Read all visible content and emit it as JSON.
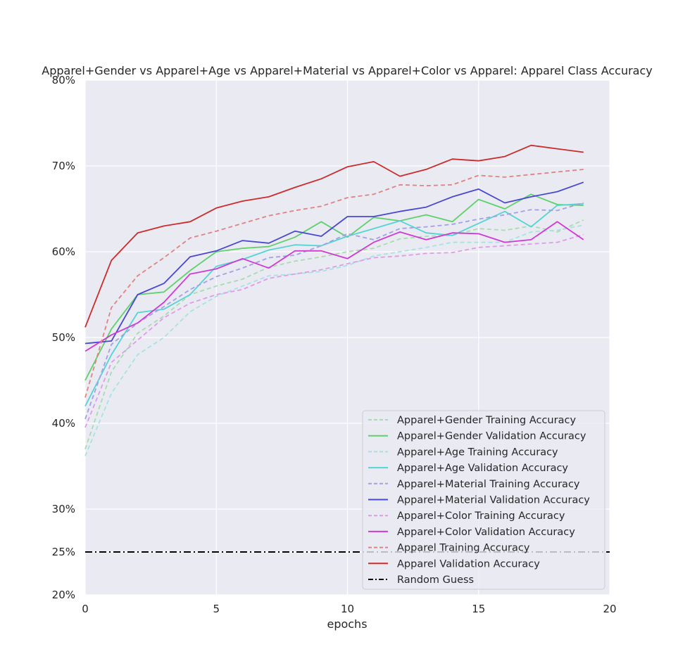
{
  "chart_data": {
    "type": "line",
    "title": "Apparel+Gender vs Apparel+Age vs Apparel+Material vs Apparel+Color vs Apparel: Apparel Class Accuracy",
    "xlabel": "epochs",
    "ylabel": "",
    "xlim": [
      0,
      20
    ],
    "ylim": [
      0.2,
      0.8
    ],
    "xticks": [
      0,
      5,
      10,
      15,
      20
    ],
    "xtick_labels": [
      "0",
      "5",
      "10",
      "15",
      "20"
    ],
    "yticks": [
      0.2,
      0.25,
      0.3,
      0.4,
      0.5,
      0.6,
      0.7,
      0.8
    ],
    "ytick_labels": [
      "20%",
      "25%",
      "30%",
      "40%",
      "50%",
      "60%",
      "70%",
      "80%"
    ],
    "grid": true,
    "legend_position": "lower-right",
    "x": [
      0,
      1,
      2,
      3,
      4,
      5,
      6,
      7,
      8,
      9,
      10,
      11,
      12,
      13,
      14,
      15,
      16,
      17,
      18,
      19
    ],
    "series": [
      {
        "name": "Apparel+Gender Training Accuracy",
        "color": "#a6ddae",
        "dash": "dashed",
        "values": [
          0.37,
          0.46,
          0.505,
          0.525,
          0.55,
          0.56,
          0.568,
          0.582,
          0.589,
          0.594,
          0.6,
          0.604,
          0.615,
          0.618,
          0.619,
          0.627,
          0.625,
          0.63,
          0.623,
          0.637
        ]
      },
      {
        "name": "Apparel+Gender Validation Accuracy",
        "color": "#5ed16b",
        "dash": "solid",
        "values": [
          0.45,
          0.51,
          0.55,
          0.553,
          0.578,
          0.6,
          0.604,
          0.606,
          0.617,
          0.635,
          0.617,
          0.64,
          0.636,
          0.643,
          0.635,
          0.661,
          0.65,
          0.667,
          0.655,
          0.654
        ]
      },
      {
        "name": "Apparel+Age Training Accuracy",
        "color": "#a5e3e3",
        "dash": "dashed",
        "values": [
          0.362,
          0.435,
          0.48,
          0.5,
          0.53,
          0.548,
          0.56,
          0.572,
          0.574,
          0.577,
          0.584,
          0.595,
          0.6,
          0.605,
          0.611,
          0.611,
          0.611,
          0.623,
          0.625,
          0.631
        ]
      },
      {
        "name": "Apparel+Age Validation Accuracy",
        "color": "#54d4d4",
        "dash": "solid",
        "values": [
          0.42,
          0.48,
          0.529,
          0.533,
          0.55,
          0.583,
          0.591,
          0.602,
          0.608,
          0.607,
          0.618,
          0.627,
          0.636,
          0.622,
          0.619,
          0.633,
          0.647,
          0.629,
          0.654,
          0.656
        ]
      },
      {
        "name": "Apparel+Material Training Accuracy",
        "color": "#a3a0e6",
        "dash": "dashed",
        "values": [
          0.405,
          0.492,
          0.517,
          0.536,
          0.556,
          0.571,
          0.581,
          0.593,
          0.596,
          0.607,
          0.621,
          0.614,
          0.627,
          0.629,
          0.632,
          0.638,
          0.643,
          0.649,
          0.648,
          0.657
        ]
      },
      {
        "name": "Apparel+Material Validation Accuracy",
        "color": "#4848d1",
        "dash": "solid",
        "values": [
          0.493,
          0.496,
          0.55,
          0.563,
          0.594,
          0.601,
          0.613,
          0.61,
          0.624,
          0.618,
          0.641,
          0.641,
          0.647,
          0.652,
          0.664,
          0.673,
          0.657,
          0.664,
          0.67,
          0.681
        ]
      },
      {
        "name": "Apparel+Color Training Accuracy",
        "color": "#e09be8",
        "dash": "dashed",
        "values": [
          0.395,
          0.471,
          0.497,
          0.523,
          0.54,
          0.55,
          0.556,
          0.569,
          0.574,
          0.579,
          0.586,
          0.593,
          0.595,
          0.598,
          0.599,
          0.605,
          0.607,
          0.609,
          0.611,
          0.62
        ]
      },
      {
        "name": "Apparel+Color Validation Accuracy",
        "color": "#cf3ad4",
        "dash": "solid",
        "values": [
          0.484,
          0.503,
          0.517,
          0.541,
          0.574,
          0.58,
          0.592,
          0.581,
          0.601,
          0.601,
          0.592,
          0.611,
          0.623,
          0.614,
          0.622,
          0.621,
          0.611,
          0.614,
          0.635,
          0.614
        ]
      },
      {
        "name": "Apparel Training Accuracy",
        "color": "#e08383",
        "dash": "dashed",
        "values": [
          0.43,
          0.535,
          0.572,
          0.593,
          0.616,
          0.624,
          0.633,
          0.642,
          0.648,
          0.653,
          0.663,
          0.667,
          0.678,
          0.677,
          0.678,
          0.689,
          0.687,
          0.69,
          0.693,
          0.696
        ]
      },
      {
        "name": "Apparel Validation Accuracy",
        "color": "#cc2b2b",
        "dash": "solid",
        "values": [
          0.512,
          0.59,
          0.622,
          0.63,
          0.635,
          0.651,
          0.659,
          0.664,
          0.675,
          0.685,
          0.699,
          0.705,
          0.688,
          0.696,
          0.708,
          0.706,
          0.711,
          0.724,
          0.72,
          0.716
        ]
      }
    ],
    "reference_line": {
      "name": "Random Guess",
      "value": 0.25,
      "color": "#000000",
      "dash": "dashdot"
    }
  }
}
